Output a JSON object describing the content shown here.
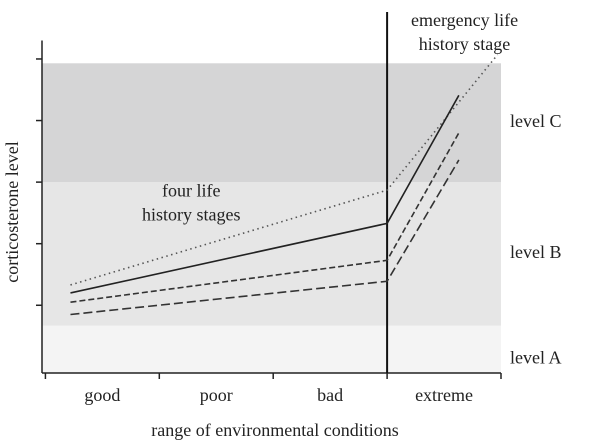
{
  "chart_data": {
    "type": "line",
    "x_label": "range of environmental conditions",
    "y_label": "corticosterone level",
    "categories": [
      "good",
      "poor",
      "bad",
      "extreme"
    ],
    "xlim": [
      -0.03,
      4
    ],
    "xticks": [
      0,
      1,
      2,
      3,
      4
    ],
    "ylim": [
      -0.1,
      5.3
    ],
    "yticks": [
      1,
      2,
      3,
      4,
      5
    ],
    "bands": [
      {
        "label": "level A",
        "from": -0.1,
        "to": 0.67,
        "color": "#f4f4f4"
      },
      {
        "label": "level B",
        "from": 0.67,
        "to": 3.0,
        "color": "#e6e6e6"
      },
      {
        "label": "level C",
        "from": 3.0,
        "to": 4.93,
        "color": "#d5d5d6"
      }
    ],
    "divider_x": 3.0,
    "series": [
      {
        "color": "#555555",
        "dash": "dotted",
        "x": [
          0.22,
          3.0,
          3.97
        ],
        "values": [
          1.33,
          2.87,
          5.07
        ]
      },
      {
        "color": "#222222",
        "dash": "solid",
        "x": [
          0.22,
          3.0,
          3.63
        ],
        "values": [
          1.2,
          2.33,
          4.41
        ]
      },
      {
        "color": "#333333",
        "dash": "dashed",
        "x": [
          0.22,
          3.0,
          3.63
        ],
        "values": [
          1.05,
          1.73,
          3.8
        ]
      },
      {
        "color": "#333333",
        "dash": "longdash",
        "x": [
          0.22,
          3.0,
          3.63
        ],
        "values": [
          0.85,
          1.39,
          3.36
        ]
      }
    ],
    "annotations": [
      {
        "lines": [
          "four life",
          "history stages"
        ],
        "x": 1.28,
        "y": 2.83
      },
      {
        "lines": [
          "emergency life",
          "history stage"
        ],
        "x": 3.68,
        "y": 5.6
      }
    ]
  }
}
